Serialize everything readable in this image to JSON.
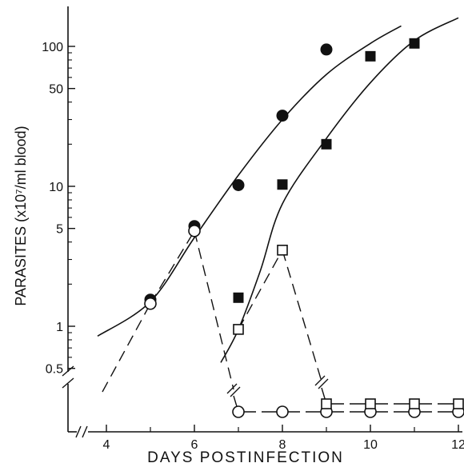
{
  "chart_data": {
    "type": "scatter",
    "xlabel": "DAYS POSTINFECTION",
    "ylabel": "PARASITES (x10⁷/ml blood)",
    "x_ticks": [
      4,
      6,
      8,
      10,
      12
    ],
    "y_ticks": [
      {
        "value": 100,
        "label": "100"
      },
      {
        "value": 50,
        "label": "50"
      },
      {
        "value": 10,
        "label": "10"
      },
      {
        "value": 5,
        "label": "5"
      },
      {
        "value": 1,
        "label": "1"
      },
      {
        "value": 0.5,
        "label": "0.5"
      }
    ],
    "xlim": [
      3.0,
      12.2
    ],
    "ylim": [
      0.25,
      200
    ],
    "y_scale": "log",
    "grid": false,
    "legend": "none",
    "undetectable_level_label": "",
    "series": [
      {
        "marker": "filled-circle",
        "line": "none",
        "points": [
          [
            5,
            1.55
          ],
          [
            6,
            5.2
          ],
          [
            7,
            10.2
          ],
          [
            8,
            32
          ],
          [
            9,
            95
          ]
        ]
      },
      {
        "marker": "filled-square",
        "line": "none",
        "points": [
          [
            7,
            1.6
          ],
          [
            8,
            10.3
          ],
          [
            9,
            20
          ],
          [
            10,
            85
          ],
          [
            11,
            105
          ]
        ]
      },
      {
        "marker": "open-circle",
        "line": "dashed",
        "points": [
          [
            5,
            1.45
          ],
          [
            6,
            4.8
          ],
          [
            7,
            "undetectable"
          ],
          [
            8,
            "undetectable"
          ],
          [
            9,
            "undetectable"
          ],
          [
            10,
            "undetectable"
          ],
          [
            11,
            "undetectable"
          ],
          [
            12,
            "undetectable"
          ]
        ]
      },
      {
        "marker": "open-square",
        "line": "dashed",
        "points": [
          [
            7,
            0.95
          ],
          [
            8,
            3.5
          ],
          [
            9,
            "undetectable"
          ],
          [
            10,
            "undetectable"
          ],
          [
            11,
            "undetectable"
          ],
          [
            12,
            "undetectable"
          ]
        ]
      }
    ],
    "fitted_curves": [
      {
        "style": "solid",
        "points": [
          [
            3.8,
            0.85
          ],
          [
            5,
            1.5
          ],
          [
            6,
            4.3
          ],
          [
            7,
            12
          ],
          [
            8,
            30
          ],
          [
            9,
            63
          ],
          [
            10,
            105
          ],
          [
            10.7,
            140
          ]
        ]
      },
      {
        "style": "solid",
        "points": [
          [
            6.6,
            0.55
          ],
          [
            7,
            0.95
          ],
          [
            7.5,
            2.5
          ],
          [
            8,
            7.5
          ],
          [
            9,
            22
          ],
          [
            10,
            55
          ],
          [
            11,
            110
          ],
          [
            12,
            160
          ]
        ]
      }
    ]
  }
}
